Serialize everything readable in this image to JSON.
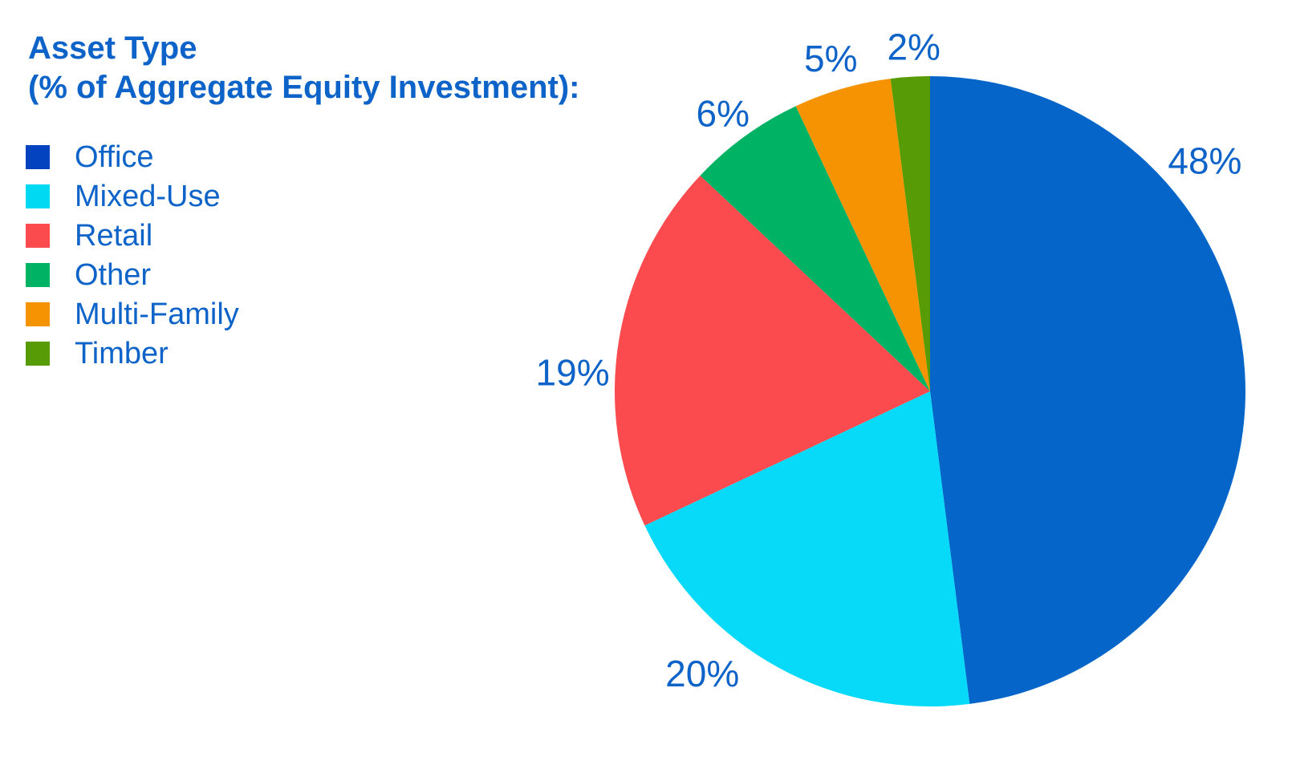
{
  "header": {
    "title_line1": "Asset Type",
    "title_line2": "(% of Aggregate Equity Investment):",
    "text_color": "#0E63C8"
  },
  "chart_data": {
    "type": "pie",
    "title": "Asset Type (% of Aggregate Equity Investment)",
    "unit": "%",
    "categories": [
      "Office",
      "Mixed-Use",
      "Retail",
      "Other",
      "Multi-Family",
      "Timber"
    ],
    "values": [
      48,
      20,
      19,
      6,
      5,
      2
    ],
    "labels": [
      "48%",
      "20%",
      "19%",
      "6%",
      "5%",
      "2%"
    ],
    "colors": [
      "#0565C8",
      "#06DAF8",
      "#FC4B4E",
      "#00B264",
      "#F59303",
      "#579B06"
    ],
    "legend": {
      "position": "top-left",
      "items": [
        {
          "label": "Office",
          "color": "#0443C0"
        },
        {
          "label": "Mixed-Use",
          "color": "#00D9F2"
        },
        {
          "label": "Retail",
          "color": "#FC4B4E"
        },
        {
          "label": "Other",
          "color": "#00B264"
        },
        {
          "label": "Multi-Family",
          "color": "#F59303"
        },
        {
          "label": "Timber",
          "color": "#579B06"
        }
      ]
    },
    "layout": {
      "start_angle_deg": 0,
      "direction": "clockwise",
      "center": [
        1159,
        488
      ],
      "radius": 393,
      "label_angles_deg": [
        50,
        218.9,
        273,
        323.3,
        343.4,
        357.3
      ],
      "label_distances": [
        447,
        452,
        446,
        432,
        433,
        430
      ],
      "label_color": "#0E63C8",
      "label_font_size": 46
    }
  }
}
